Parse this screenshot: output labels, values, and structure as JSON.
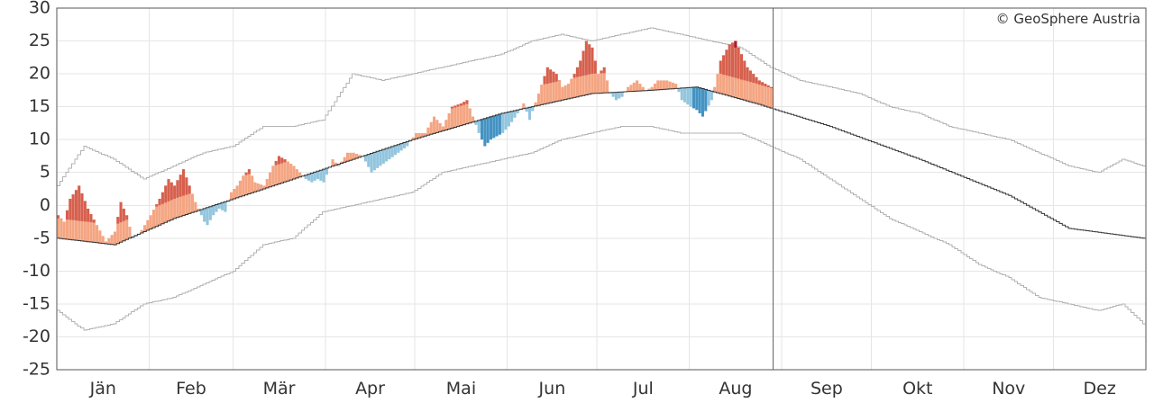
{
  "chart_data": {
    "type": "bar",
    "credit": "© GeoSphere Austria",
    "ylim": [
      -25,
      30
    ],
    "yticks": [
      30,
      25,
      20,
      15,
      10,
      5,
      0,
      -5,
      -10,
      -15,
      -20,
      -25
    ],
    "months": [
      "Jän",
      "Feb",
      "Mär",
      "Apr",
      "Mai",
      "Jun",
      "Jul",
      "Aug",
      "Sep",
      "Okt",
      "Nov",
      "Dez"
    ],
    "month_days": [
      31,
      28,
      31,
      30,
      31,
      30,
      31,
      31,
      30,
      31,
      30,
      31
    ],
    "today_day": 240,
    "colors": {
      "warm_light": "#f4a582",
      "warm": "#d6604d",
      "warm_dark": "#b2182b",
      "cold_light": "#92c5de",
      "cold": "#4393c3"
    },
    "climatology": [
      [
        1,
        -5
      ],
      [
        20,
        -6
      ],
      [
        40,
        -2
      ],
      [
        60,
        1
      ],
      [
        90,
        5.5
      ],
      [
        120,
        10
      ],
      [
        150,
        14
      ],
      [
        180,
        17
      ],
      [
        200,
        17.5
      ],
      [
        215,
        18
      ],
      [
        235,
        15.5
      ],
      [
        260,
        12
      ],
      [
        290,
        7
      ],
      [
        320,
        1.5
      ],
      [
        340,
        -3.5
      ],
      [
        365,
        -5
      ]
    ],
    "record_max": [
      [
        1,
        3
      ],
      [
        10,
        9
      ],
      [
        20,
        7
      ],
      [
        30,
        4
      ],
      [
        40,
        6
      ],
      [
        50,
        8
      ],
      [
        60,
        9
      ],
      [
        70,
        12
      ],
      [
        80,
        12
      ],
      [
        90,
        13
      ],
      [
        100,
        20
      ],
      [
        110,
        19
      ],
      [
        120,
        20
      ],
      [
        130,
        21
      ],
      [
        140,
        22
      ],
      [
        150,
        23
      ],
      [
        160,
        25
      ],
      [
        170,
        26
      ],
      [
        180,
        25
      ],
      [
        190,
        26
      ],
      [
        200,
        27
      ],
      [
        210,
        26
      ],
      [
        220,
        25
      ],
      [
        230,
        24
      ],
      [
        240,
        21
      ],
      [
        250,
        19
      ],
      [
        260,
        18
      ],
      [
        270,
        17
      ],
      [
        280,
        15
      ],
      [
        290,
        14
      ],
      [
        300,
        12
      ],
      [
        310,
        11
      ],
      [
        320,
        10
      ],
      [
        330,
        8
      ],
      [
        340,
        6
      ],
      [
        350,
        5
      ],
      [
        358,
        7
      ],
      [
        365,
        6
      ]
    ],
    "record_min": [
      [
        1,
        -16
      ],
      [
        10,
        -19
      ],
      [
        20,
        -18
      ],
      [
        30,
        -15
      ],
      [
        40,
        -14
      ],
      [
        50,
        -12
      ],
      [
        60,
        -10
      ],
      [
        70,
        -6
      ],
      [
        80,
        -5
      ],
      [
        90,
        -1
      ],
      [
        100,
        0
      ],
      [
        110,
        1
      ],
      [
        120,
        2
      ],
      [
        130,
        5
      ],
      [
        140,
        6
      ],
      [
        150,
        7
      ],
      [
        160,
        8
      ],
      [
        170,
        10
      ],
      [
        180,
        11
      ],
      [
        190,
        12
      ],
      [
        200,
        12
      ],
      [
        210,
        11
      ],
      [
        220,
        11
      ],
      [
        230,
        11
      ],
      [
        240,
        9
      ],
      [
        250,
        7
      ],
      [
        260,
        4
      ],
      [
        270,
        1
      ],
      [
        280,
        -2
      ],
      [
        290,
        -4
      ],
      [
        300,
        -6
      ],
      [
        310,
        -9
      ],
      [
        320,
        -11
      ],
      [
        330,
        -14
      ],
      [
        340,
        -15
      ],
      [
        350,
        -16
      ],
      [
        358,
        -15
      ],
      [
        365,
        -18
      ]
    ],
    "daily_mean": [
      [
        1,
        -1.5
      ],
      [
        3,
        -2.5
      ],
      [
        5,
        1
      ],
      [
        8,
        3
      ],
      [
        11,
        -0.5
      ],
      [
        14,
        -3
      ],
      [
        17,
        -5.5
      ],
      [
        20,
        -4
      ],
      [
        22,
        0.5
      ],
      [
        24,
        -1.5
      ],
      [
        26,
        -5
      ],
      [
        28,
        -4.5
      ],
      [
        30,
        -3
      ],
      [
        32,
        -1.5
      ],
      [
        35,
        1
      ],
      [
        38,
        4
      ],
      [
        40,
        3
      ],
      [
        43,
        5.5
      ],
      [
        45,
        3
      ],
      [
        47,
        0.5
      ],
      [
        49,
        -1.5
      ],
      [
        50,
        -2.5
      ],
      [
        51,
        -3
      ],
      [
        53,
        -1.5
      ],
      [
        55,
        -0.5
      ],
      [
        57,
        -1
      ],
      [
        59,
        2
      ],
      [
        61,
        3
      ],
      [
        63,
        4.5
      ],
      [
        65,
        5.5
      ],
      [
        67,
        3.5
      ],
      [
        70,
        3
      ],
      [
        73,
        6
      ],
      [
        75,
        7.5
      ],
      [
        77,
        7
      ],
      [
        80,
        6
      ],
      [
        82,
        5
      ],
      [
        84,
        4
      ],
      [
        86,
        3.5
      ],
      [
        88,
        4
      ],
      [
        90,
        3.5
      ],
      [
        93,
        7
      ],
      [
        95,
        6
      ],
      [
        98,
        8
      ],
      [
        100,
        8
      ],
      [
        103,
        7.5
      ],
      [
        106,
        5
      ],
      [
        109,
        6
      ],
      [
        112,
        7
      ],
      [
        115,
        8
      ],
      [
        118,
        9
      ],
      [
        121,
        11
      ],
      [
        124,
        11
      ],
      [
        127,
        13.5
      ],
      [
        130,
        12
      ],
      [
        133,
        15
      ],
      [
        136,
        15.5
      ],
      [
        138,
        16
      ],
      [
        140,
        13.5
      ],
      [
        142,
        11
      ],
      [
        144,
        9
      ],
      [
        146,
        10
      ],
      [
        148,
        10.5
      ],
      [
        150,
        11
      ],
      [
        152,
        12
      ],
      [
        155,
        14
      ],
      [
        157,
        15.5
      ],
      [
        159,
        13
      ],
      [
        162,
        17
      ],
      [
        165,
        21
      ],
      [
        168,
        20
      ],
      [
        170,
        18
      ],
      [
        172,
        18.5
      ],
      [
        174,
        20
      ],
      [
        176,
        22
      ],
      [
        178,
        25
      ],
      [
        180,
        24
      ],
      [
        182,
        20
      ],
      [
        184,
        21
      ],
      [
        186,
        17
      ],
      [
        188,
        16
      ],
      [
        190,
        16.5
      ],
      [
        192,
        18
      ],
      [
        195,
        19
      ],
      [
        198,
        17.5
      ],
      [
        200,
        18
      ],
      [
        202,
        19
      ],
      [
        205,
        19
      ],
      [
        208,
        18.5
      ],
      [
        210,
        16
      ],
      [
        213,
        15
      ],
      [
        215,
        14.5
      ],
      [
        217,
        13.5
      ],
      [
        220,
        16
      ],
      [
        223,
        22
      ],
      [
        226,
        24.5
      ],
      [
        228,
        25
      ],
      [
        230,
        23
      ],
      [
        232,
        21
      ],
      [
        234,
        20
      ],
      [
        236,
        19
      ],
      [
        238,
        18.5
      ],
      [
        240,
        18
      ],
      [
        242,
        17.5
      ],
      [
        244,
        16
      ],
      [
        246,
        15
      ]
    ],
    "top_days": [
      [
        52,
        1
      ],
      [
        228,
        1
      ]
    ]
  }
}
